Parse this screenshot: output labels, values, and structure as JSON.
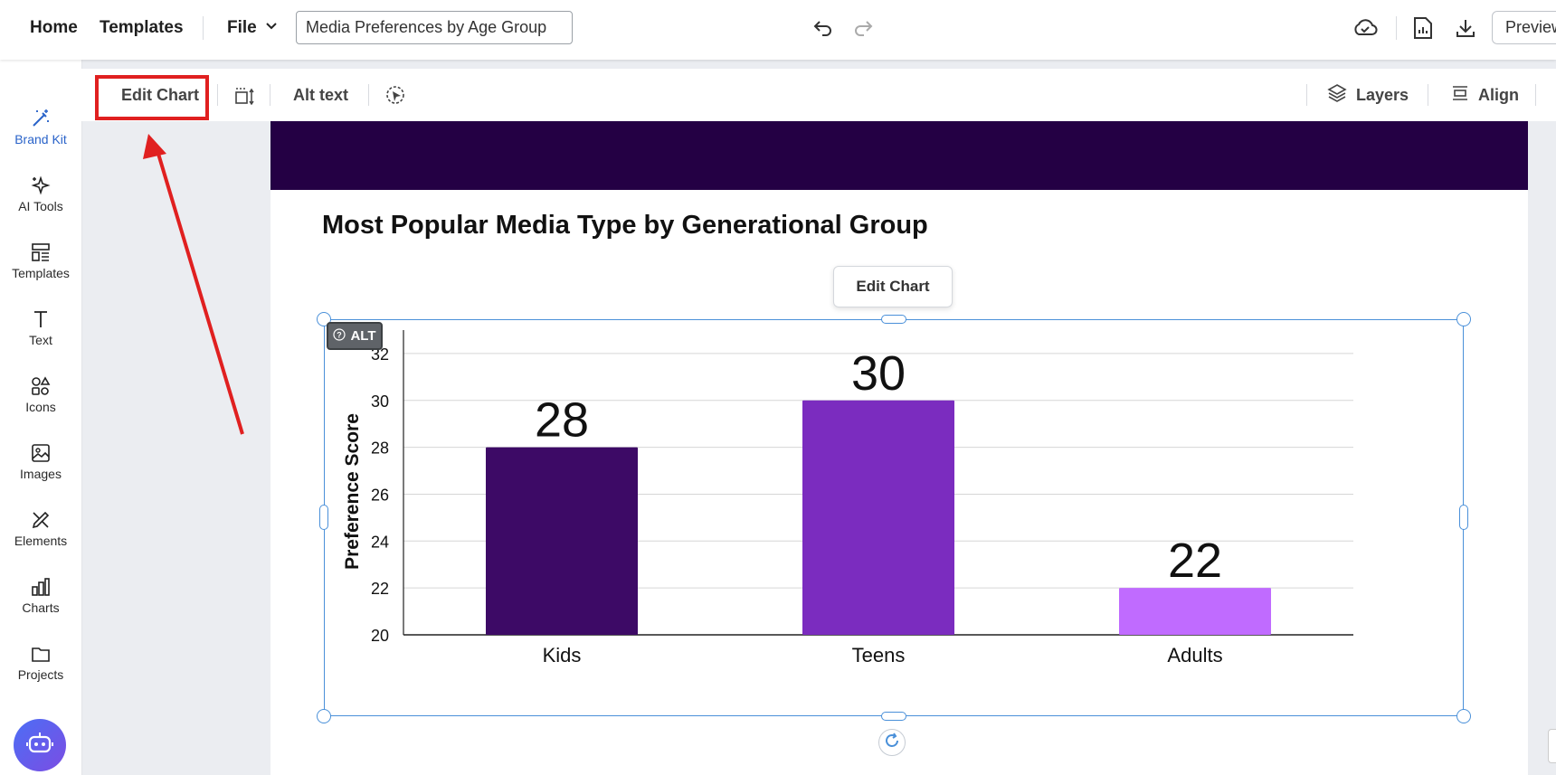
{
  "topbar": {
    "home": "Home",
    "templates": "Templates",
    "file": "File",
    "document_title": "Media Preferences by Age Group",
    "preview": "Preview"
  },
  "sidebar": {
    "items": [
      {
        "label": "Brand Kit",
        "icon": "magic-wand-icon"
      },
      {
        "label": "AI Tools",
        "icon": "sparkles-icon"
      },
      {
        "label": "Templates",
        "icon": "templates-icon"
      },
      {
        "label": "Text",
        "icon": "text-icon"
      },
      {
        "label": "Icons",
        "icon": "shapes-icon"
      },
      {
        "label": "Images",
        "icon": "image-icon"
      },
      {
        "label": "Elements",
        "icon": "elements-icon"
      },
      {
        "label": "Charts",
        "icon": "bar-chart-icon"
      },
      {
        "label": "Projects",
        "icon": "folder-icon"
      }
    ]
  },
  "toolbar": {
    "edit_chart": "Edit Chart",
    "alt_text": "Alt text",
    "layers": "Layers",
    "align": "Align"
  },
  "canvas": {
    "title": "Most Popular Media Type by Generational Group",
    "edit_chart_button": "Edit Chart",
    "alt_badge": "ALT"
  },
  "colors": {
    "banner": "#240044",
    "highlight": "#e02020",
    "selection": "#4a90d9"
  },
  "chart_data": {
    "type": "bar",
    "categories": [
      "Kids",
      "Teens",
      "Adults"
    ],
    "values": [
      28,
      30,
      22
    ],
    "colors": [
      "#3d0a66",
      "#7b2cbf",
      "#c06bff"
    ],
    "ylabel": "Preference Score",
    "xlabel": "",
    "ylim": [
      20,
      33
    ],
    "yticks": [
      20,
      22,
      24,
      26,
      28,
      30,
      32
    ],
    "grid": true,
    "data_labels": true
  }
}
